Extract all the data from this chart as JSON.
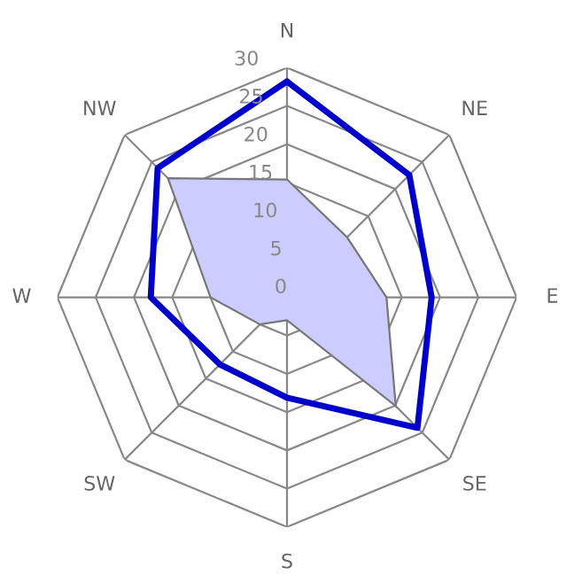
{
  "chart_data": {
    "type": "radar",
    "categories": [
      "N",
      "NE",
      "E",
      "SE",
      "S",
      "SW",
      "W",
      "NW"
    ],
    "ylim": [
      0,
      30
    ],
    "yticks": [
      0,
      5,
      10,
      15,
      20,
      25,
      30
    ],
    "grid": true,
    "legend": false,
    "marker": "none",
    "series": [
      {
        "type": "area",
        "color": "#ccccff",
        "values": [
          15.4,
          11.1,
          13,
          20.1,
          3,
          5,
          10,
          22
        ]
      },
      {
        "color": "#0000cc",
        "values": [
          28.2,
          22.6,
          18.9,
          24.1,
          13.1,
          12.4,
          17.8,
          23.9
        ]
      }
    ]
  }
}
